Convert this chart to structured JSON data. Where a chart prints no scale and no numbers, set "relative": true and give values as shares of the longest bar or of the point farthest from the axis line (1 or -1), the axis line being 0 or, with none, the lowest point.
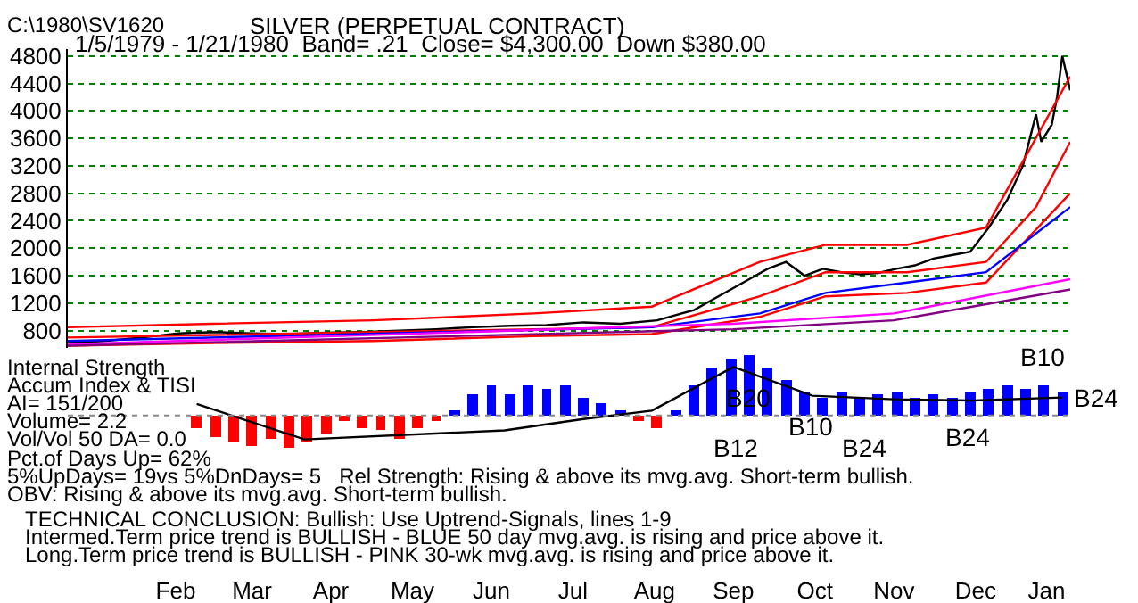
{
  "chart_data": [
    {
      "type": "line",
      "title": "SILVER (PERPETUAL CONTRACT)",
      "subtitle": "1/5/1979 - 1/21/1980  Band= .21  Close= $4,300.00  Down $380.00",
      "annotations": [
        "C:\\1980\\SV1620"
      ],
      "x": [
        "1979-01-05",
        "1979-01-19",
        "1979-02-02",
        "1979-02-16",
        "1979-03-02",
        "1979-03-16",
        "1979-03-30",
        "1979-04-13",
        "1979-04-27",
        "1979-05-11",
        "1979-05-25",
        "1979-06-08",
        "1979-06-22",
        "1979-07-06",
        "1979-07-20",
        "1979-08-03",
        "1979-08-17",
        "1979-08-31",
        "1979-09-07",
        "1979-09-14",
        "1979-09-21",
        "1979-09-28",
        "1979-10-05",
        "1979-10-12",
        "1979-10-19",
        "1979-10-26",
        "1979-11-02",
        "1979-11-09",
        "1979-11-16",
        "1979-11-23",
        "1979-11-30",
        "1979-12-07",
        "1979-12-14",
        "1979-12-21",
        "1979-12-28",
        "1980-01-03",
        "1980-01-08",
        "1980-01-10",
        "1980-01-14",
        "1980-01-16",
        "1980-01-18",
        "1980-01-21"
      ],
      "series": [
        {
          "color": "#000000",
          "values": [
            620,
            650,
            700,
            760,
            780,
            760,
            750,
            770,
            780,
            800,
            820,
            850,
            870,
            880,
            920,
            900,
            950,
            1100,
            1250,
            1400,
            1550,
            1700,
            1800,
            1600,
            1700,
            1650,
            1620,
            1640,
            1700,
            1750,
            1850,
            1900,
            1950,
            2300,
            2700,
            3200,
            3950,
            3550,
            3800,
            4200,
            4800,
            4300
          ]
        },
        {
          "color": "#ff0000",
          "x": [
            "1979-01-05",
            "1979-03-01",
            "1979-05-01",
            "1979-07-01",
            "1979-08-15",
            "1979-09-25",
            "1979-10-20",
            "1979-11-20",
            "1979-12-20",
            "1980-01-21"
          ],
          "values": [
            850,
            900,
            950,
            1050,
            1150,
            1800,
            2050,
            2050,
            2300,
            4500
          ]
        },
        {
          "color": "#ff0000",
          "x": [
            "1979-01-05",
            "1979-08-15",
            "1979-09-25",
            "1979-10-20",
            "1979-11-20",
            "1979-12-20",
            "1980-01-08",
            "1980-01-21"
          ],
          "values": [
            700,
            850,
            1300,
            1650,
            1650,
            1800,
            2600,
            3550
          ]
        },
        {
          "color": "#ff0000",
          "x": [
            "1979-01-05",
            "1979-03-01",
            "1979-05-01",
            "1979-07-01",
            "1979-08-15",
            "1979-09-25",
            "1979-10-20",
            "1979-11-20",
            "1979-12-20",
            "1980-01-21"
          ],
          "values": [
            580,
            620,
            650,
            720,
            750,
            1000,
            1300,
            1350,
            1500,
            2800
          ]
        },
        {
          "color": "#0000ff",
          "x": [
            "1979-01-05",
            "1979-08-15",
            "1979-09-25",
            "1979-10-20",
            "1979-11-20",
            "1979-12-20",
            "1980-01-21"
          ],
          "values": [
            650,
            850,
            1050,
            1350,
            1500,
            1650,
            2600
          ]
        },
        {
          "color": "#ff00ff",
          "x": [
            "1979-01-05",
            "1979-09-15",
            "1979-11-15",
            "1980-01-21"
          ],
          "values": [
            600,
            900,
            1050,
            1550
          ]
        },
        {
          "color": "#800080",
          "x": [
            "1979-01-05",
            "1979-09-15",
            "1979-11-15",
            "1980-01-21"
          ],
          "values": [
            580,
            820,
            950,
            1400
          ]
        }
      ],
      "xlim": [
        "1979-01-05",
        "1980-01-21"
      ],
      "ylim": [
        550,
        4900
      ],
      "yticks": [
        800,
        1200,
        1600,
        2000,
        2400,
        2800,
        3200,
        3600,
        4000,
        4400,
        4800
      ],
      "grid": "y",
      "tick_labels": "y",
      "marker": "none",
      "line_style": "solid"
    },
    {
      "type": "bar",
      "relative": true,
      "x": [
        "1979-02-23",
        "1979-03-02",
        "1979-03-09",
        "1979-03-16",
        "1979-03-23",
        "1979-03-30",
        "1979-04-06",
        "1979-04-13",
        "1979-04-20",
        "1979-04-27",
        "1979-05-04",
        "1979-05-11",
        "1979-05-18",
        "1979-05-25",
        "1979-06-01",
        "1979-06-08",
        "1979-06-15",
        "1979-06-22",
        "1979-06-29",
        "1979-07-06",
        "1979-07-13",
        "1979-07-20",
        "1979-07-27",
        "1979-08-03",
        "1979-08-10",
        "1979-08-17",
        "1979-08-24",
        "1979-08-31",
        "1979-09-07",
        "1979-09-14",
        "1979-09-21",
        "1979-09-28",
        "1979-10-05",
        "1979-10-12",
        "1979-10-19",
        "1979-10-26",
        "1979-11-02",
        "1979-11-09",
        "1979-11-16",
        "1979-11-23",
        "1979-11-30",
        "1979-12-07",
        "1979-12-14",
        "1979-12-21",
        "1979-12-28",
        "1980-01-04",
        "1980-01-11",
        "1980-01-18"
      ],
      "series": [
        {
          "values": [
            -0.2,
            -0.35,
            -0.45,
            -0.5,
            -0.4,
            -0.55,
            -0.45,
            -0.3,
            -0.1,
            -0.2,
            -0.25,
            -0.4,
            -0.2,
            -0.1,
            0.1,
            0.35,
            0.5,
            0.35,
            0.5,
            0.45,
            0.5,
            0.3,
            0.2,
            0.1,
            -0.1,
            -0.2,
            0.1,
            0.5,
            0.8,
            0.95,
            1.0,
            0.8,
            0.6,
            0.4,
            0.3,
            0.4,
            0.3,
            0.35,
            0.4,
            0.3,
            0.35,
            0.3,
            0.4,
            0.45,
            0.5,
            0.45,
            0.5,
            0.4
          ],
          "colors": [
            "#ff0000",
            "#ff0000",
            "#ff0000",
            "#ff0000",
            "#ff0000",
            "#ff0000",
            "#ff0000",
            "#ff0000",
            "#ff0000",
            "#ff0000",
            "#ff0000",
            "#ff0000",
            "#ff0000",
            "#ff0000",
            "#0000ff",
            "#0000ff",
            "#0000ff",
            "#0000ff",
            "#0000ff",
            "#0000ff",
            "#0000ff",
            "#0000ff",
            "#0000ff",
            "#0000ff",
            "#ff0000",
            "#ff0000",
            "#0000ff",
            "#0000ff",
            "#0000ff",
            "#0000ff",
            "#0000ff",
            "#0000ff",
            "#0000ff",
            "#0000ff",
            "#0000ff",
            "#0000ff",
            "#0000ff",
            "#0000ff",
            "#0000ff",
            "#0000ff",
            "#0000ff",
            "#0000ff",
            "#0000ff",
            "#0000ff",
            "#0000ff",
            "#0000ff",
            "#0000ff",
            "#0000ff"
          ]
        },
        {
          "type": "line",
          "color": "#000000",
          "x": [
            "1979-02-23",
            "1979-04-05",
            "1979-06-20",
            "1979-07-20",
            "1979-08-15",
            "1979-09-15",
            "1979-10-15",
            "1979-11-15",
            "1979-12-15",
            "1980-01-18"
          ],
          "values": [
            0.19,
            -0.4,
            -0.25,
            -0.06,
            0.08,
            0.81,
            0.33,
            0.27,
            0.25,
            0.3
          ]
        }
      ],
      "annotations": [
        "Internal Strength",
        "Accum Index & TISI",
        "AI= 151/200",
        "Volume= 2.2",
        "Vol/Vol 50 DA= 0.0",
        "Pct.of Days Up= 62%",
        "5%UpDays= 19vs 5%DnDays= 5   Rel Strength: Rising & above its mvg.avg. Short-term bullish.",
        "OBV: Rising & above its mvg.avg. Short-term bullish.",
        "TECHNICAL CONCLUSION: Bullish: Use Uptrend-Signals, lines 1-9",
        "Intermed.Term price trend is BULLISH - BLUE 50 day mvg.avg. is rising and price above it.",
        "Long.Term price trend is BULLISH - PINK 30-wk mvg.avg. is rising and price above it.",
        "B20",
        "B12",
        "B10",
        "B24",
        "B24",
        "B10",
        "B24"
      ],
      "ref_lines": [
        {
          "axis": "y",
          "value": 0,
          "color": "#888888",
          "line_style": "dotted"
        }
      ],
      "xlim": [
        "1979-01-05",
        "1980-01-21"
      ],
      "xticks": [
        {
          "value": "1979-02-15",
          "label": "Feb"
        },
        {
          "value": "1979-03-16",
          "label": "Mar"
        },
        {
          "value": "1979-04-15",
          "label": "Apr"
        },
        {
          "value": "1979-05-16",
          "label": "May"
        },
        {
          "value": "1979-06-15",
          "label": "Jun"
        },
        {
          "value": "1979-07-16",
          "label": "Jul"
        },
        {
          "value": "1979-08-16",
          "label": "Aug"
        },
        {
          "value": "1979-09-15",
          "label": "Sep"
        },
        {
          "value": "1979-10-16",
          "label": "Oct"
        },
        {
          "value": "1979-11-15",
          "label": "Nov"
        },
        {
          "value": "1979-12-16",
          "label": "Dec"
        },
        {
          "value": "1980-01-12",
          "label": "Jan"
        }
      ]
    }
  ]
}
